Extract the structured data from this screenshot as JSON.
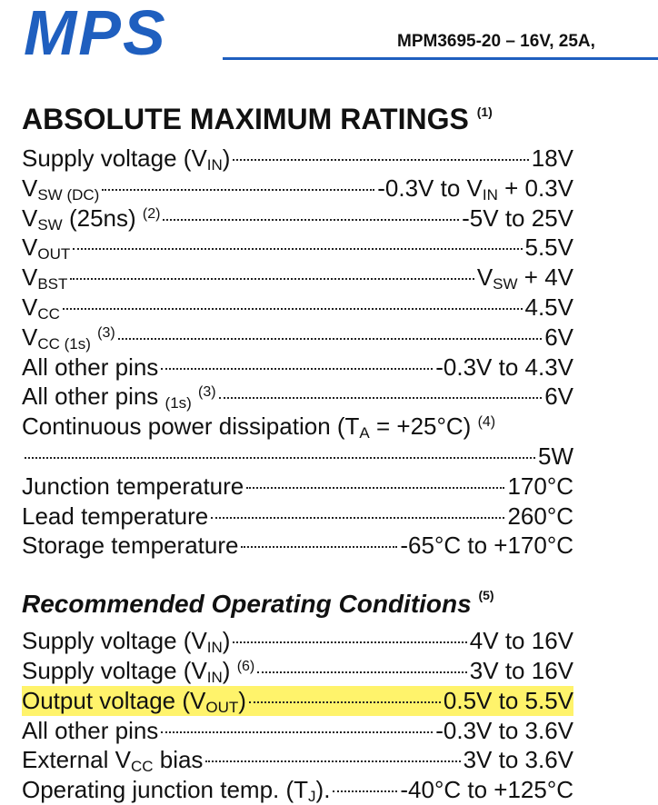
{
  "header": {
    "logo": "MPS",
    "part": "MPM3695-20 – 16V, 25A,"
  },
  "sections": [
    {
      "title": [
        "ABSOLUTE MAXIMUM RATINGS ",
        {
          "sup": "(1)"
        }
      ],
      "style": "caps",
      "rows": [
        {
          "label": [
            "Supply voltage (V",
            {
              "sub": "IN"
            },
            ")"
          ],
          "value": [
            "18V"
          ]
        },
        {
          "label": [
            "V",
            {
              "sub": "SW (DC)"
            }
          ],
          "value": [
            "-0.3V to V",
            {
              "sub": "IN"
            },
            " + 0.3V"
          ]
        },
        {
          "label": [
            "V",
            {
              "sub": "SW"
            },
            " (25ns) ",
            {
              "sup": "(2)"
            }
          ],
          "value": [
            "-5V to 25V"
          ]
        },
        {
          "label": [
            "V",
            {
              "sub": "OUT"
            }
          ],
          "value": [
            "5.5V"
          ]
        },
        {
          "label": [
            "V",
            {
              "sub": "BST"
            }
          ],
          "value": [
            "V",
            {
              "sub": "SW"
            },
            " + 4V"
          ]
        },
        {
          "label": [
            "V",
            {
              "sub": "CC"
            }
          ],
          "value": [
            "4.5V"
          ]
        },
        {
          "label": [
            "V",
            {
              "sub": "CC (1s)"
            },
            " ",
            {
              "sup": "(3)"
            }
          ],
          "value": [
            "6V"
          ]
        },
        {
          "label": [
            "All other pins"
          ],
          "value": [
            "-0.3V to 4.3V"
          ]
        },
        {
          "label": [
            "All other pins ",
            {
              "sub": "(1s)"
            },
            " ",
            {
              "sup": "(3)"
            }
          ],
          "value": [
            "6V"
          ]
        },
        {
          "label": [
            "Continuous power dissipation (T",
            {
              "sub": "A"
            },
            " = +25°C) ",
            {
              "sup": "(4)"
            }
          ],
          "value": [
            "5W"
          ],
          "wrap": true
        },
        {
          "label": [
            "Junction temperature"
          ],
          "value": [
            "170°C"
          ]
        },
        {
          "label": [
            "Lead temperature"
          ],
          "value": [
            "260°C"
          ]
        },
        {
          "label": [
            "Storage temperature"
          ],
          "value": [
            "-65°C to +170°C"
          ]
        }
      ]
    },
    {
      "title": [
        "Recommended Operating Conditions ",
        {
          "sup": "(5)"
        }
      ],
      "style": "italic",
      "rows": [
        {
          "label": [
            "Supply voltage (V",
            {
              "sub": "IN"
            },
            ")"
          ],
          "value": [
            "4V to 16V"
          ]
        },
        {
          "label": [
            "Supply voltage (V",
            {
              "sub": "IN"
            },
            ") ",
            {
              "sup": "(6)"
            }
          ],
          "value": [
            "3V to 16V"
          ]
        },
        {
          "label": [
            "Output voltage (V",
            {
              "sub": "OUT"
            },
            ")"
          ],
          "value": [
            "0.5V to 5.5V"
          ],
          "highlight": true
        },
        {
          "label": [
            "All other pins"
          ],
          "value": [
            "-0.3V to 3.6V"
          ]
        },
        {
          "label": [
            "External V",
            {
              "sub": "CC"
            },
            " bias"
          ],
          "value": [
            "3V to 3.6V"
          ]
        },
        {
          "label": [
            "Operating junction temp. (T",
            {
              "sub": "J"
            },
            ")."
          ],
          "value": [
            "-40°C to +125°C"
          ]
        }
      ]
    }
  ]
}
